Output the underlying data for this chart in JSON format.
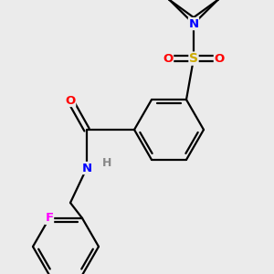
{
  "background_color": "#ebebeb",
  "figsize": [
    3.0,
    3.0
  ],
  "dpi": 100,
  "bond_color": "#000000",
  "atom_colors": {
    "N": "#0000ff",
    "O": "#ff0000",
    "S": "#ccaa00",
    "F": "#ff00ff",
    "H": "#888888",
    "C": "#000000"
  },
  "lw": 1.6,
  "font_size": 9.5
}
